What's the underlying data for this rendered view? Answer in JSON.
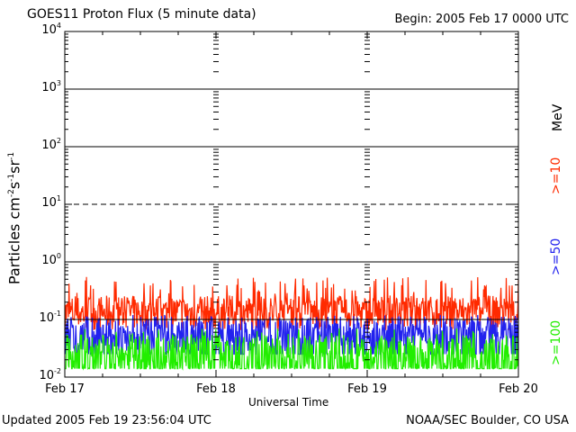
{
  "header": {
    "title": "GOES11 Proton Flux (5 minute data)",
    "begin": "Begin: 2005 Feb 17 0000 UTC"
  },
  "footer": {
    "updated": "Updated 2005 Feb 19 23:56:04 UTC",
    "credit": "NOAA/SEC Boulder, CO USA"
  },
  "chart_data": {
    "type": "line",
    "title": "GOES11 Proton Flux (5 minute data)",
    "xlabel": "Universal Time",
    "ylabel": "Particles cm-2s-1sr-1",
    "yscale": "log",
    "ylim": [
      0.01,
      10000
    ],
    "yticks": [
      "10^-2",
      "10^-1",
      "10^0",
      "10^1",
      "10^2",
      "10^3",
      "10^4"
    ],
    "xticks": [
      "Feb 17",
      "Feb 18",
      "Feb 19",
      "Feb 20"
    ],
    "xlim": [
      "2005-02-17 00:00",
      "2005-02-20 00:00"
    ],
    "unit_label": "MeV",
    "grid": true,
    "threshold_dashed": 10,
    "series": [
      {
        "name": ">=10",
        "color": "#ff2a00",
        "baseline": 0.14,
        "spike_max": 0.55
      },
      {
        "name": ">=50",
        "color": "#2222ee",
        "baseline": 0.06,
        "spike_max": 0.12
      },
      {
        "name": ">=100",
        "color": "#22ee00",
        "baseline": 0.03,
        "spike_max": 0.07
      }
    ]
  }
}
